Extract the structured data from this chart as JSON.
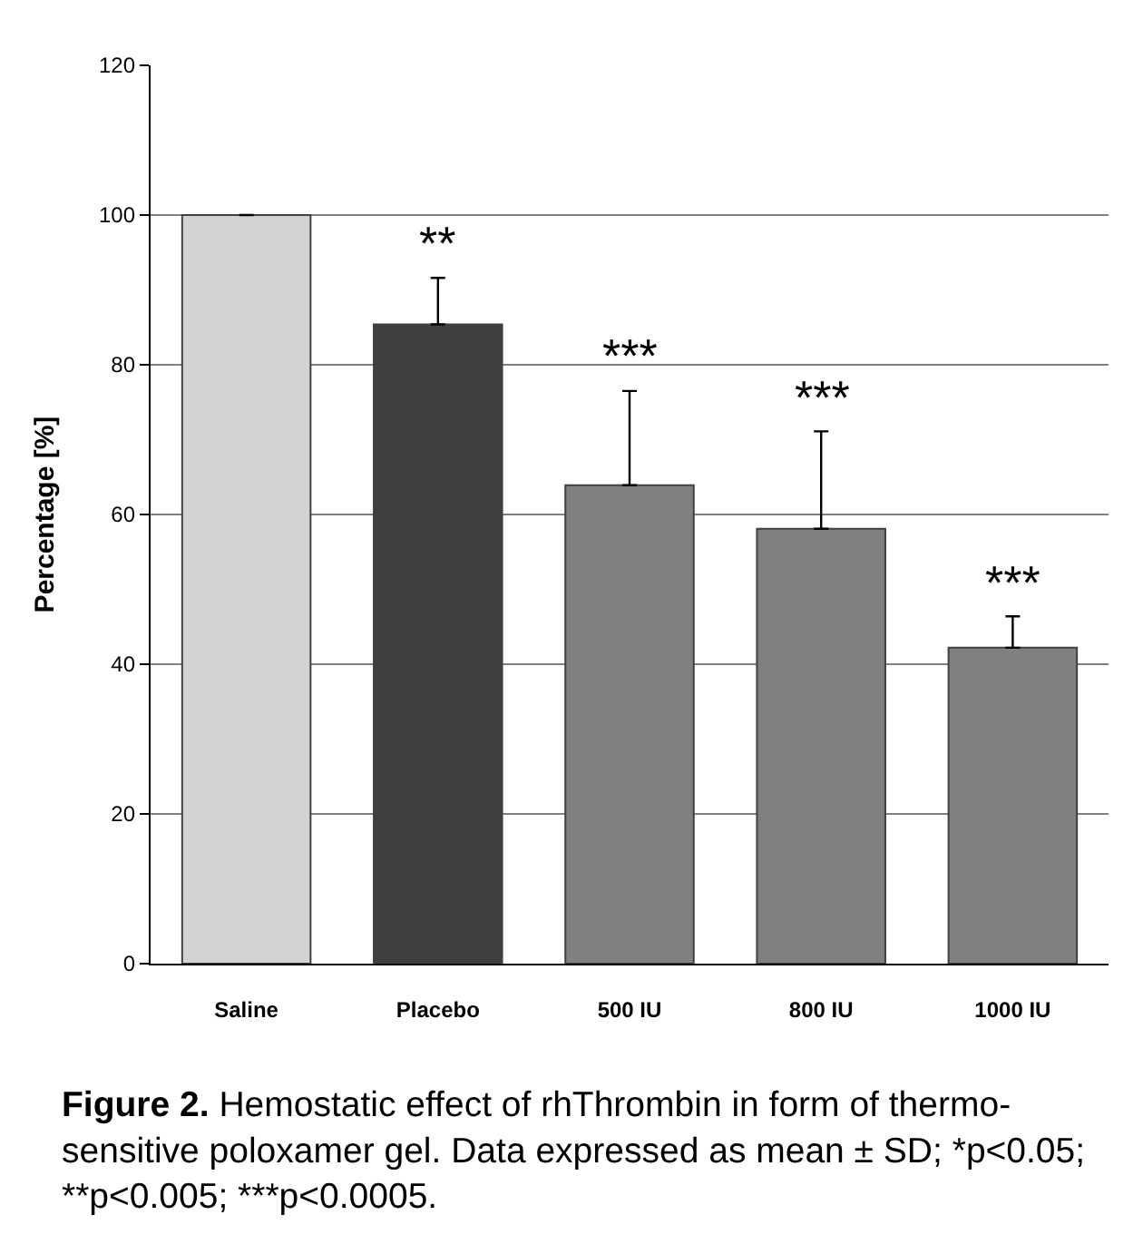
{
  "chart_data": {
    "type": "bar",
    "categories": [
      "Saline",
      "Placebo",
      "500 IU",
      "800 IU",
      "1000 IU"
    ],
    "values": [
      100,
      85.4,
      63.9,
      58.1,
      42.2
    ],
    "errors": [
      [
        100,
        100
      ],
      [
        85.4,
        91.6
      ],
      [
        63.9,
        76.5
      ],
      [
        58.1,
        71.1
      ],
      [
        42.2,
        46.4
      ]
    ],
    "colors": [
      "#d1d2d4",
      "#3f3f3f",
      "#808080",
      "#808080",
      "#808080"
    ],
    "ylabel": "Percentage [%]",
    "ylim": [
      0,
      120
    ],
    "yticks": [
      0,
      20,
      40,
      60,
      80,
      100,
      120
    ],
    "grid": "y",
    "annotations": [
      {
        "text": "**",
        "x": "Placebo",
        "y": 91.6
      },
      {
        "text": "***",
        "x": "500 IU",
        "y": 76.5
      },
      {
        "text": "***",
        "x": "800 IU",
        "y": 71.1
      },
      {
        "text": "***",
        "x": "1000 IU",
        "y": 46.4
      },
      "Figure 2. Hemostatic effect of rhThrombin in form of thermo-sensitive poloxamer gel. Data expressed as mean ± SD; *p<0.05; **p<0.005; ***p<0.0005."
    ]
  }
}
